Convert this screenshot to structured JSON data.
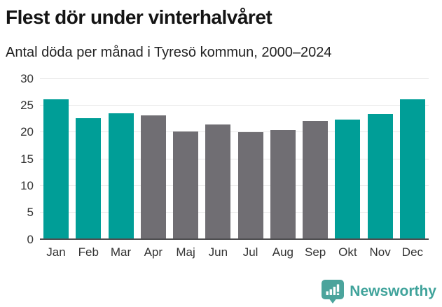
{
  "chart_data": {
    "type": "bar",
    "title": "Flest dör under vinterhalvåret",
    "subtitle": "Antal döda per månad i Tyresö kommun, 2000–2024",
    "categories": [
      "Jan",
      "Feb",
      "Mar",
      "Apr",
      "Maj",
      "Jun",
      "Jul",
      "Aug",
      "Sep",
      "Okt",
      "Nov",
      "Dec"
    ],
    "values": [
      26.2,
      22.7,
      23.5,
      23.2,
      20.2,
      21.5,
      20.1,
      20.4,
      22.1,
      22.4,
      23.4,
      26.2
    ],
    "bar_colors": [
      "teal",
      "teal",
      "teal",
      "gray",
      "gray",
      "gray",
      "gray",
      "gray",
      "gray",
      "teal",
      "teal",
      "teal"
    ],
    "palette": {
      "teal": "#009e97",
      "gray": "#706e73"
    },
    "yticks": [
      0,
      5,
      10,
      15,
      20,
      25,
      30
    ],
    "ylim": [
      0,
      30
    ],
    "grid": true,
    "legend": false,
    "xlabel": "",
    "ylabel": ""
  },
  "footer": {
    "brand": "Newsworthy",
    "brand_color": "#40a39b",
    "logo_icon": "bar-chart-speech-bubble-icon"
  }
}
